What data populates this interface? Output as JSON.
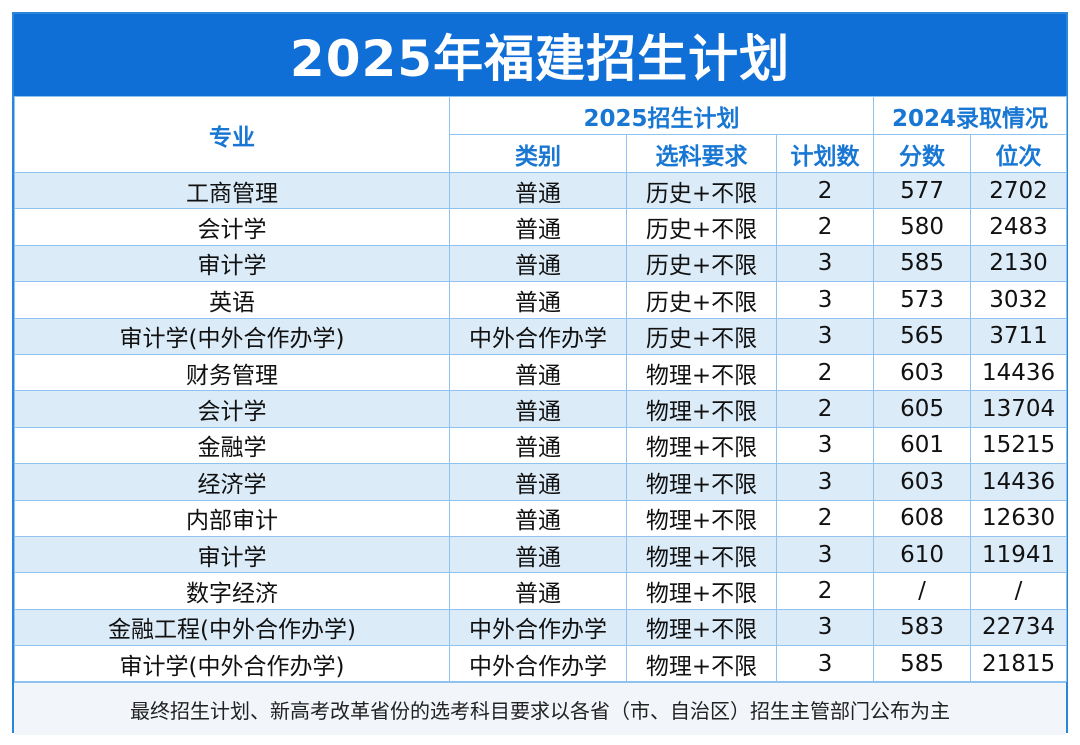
{
  "title": "2025年福建招生计划",
  "header": {
    "major": "专业",
    "plan_group": "2025招生计划",
    "admit_group": "2024录取情况",
    "type": "类别",
    "subjects": "选科要求",
    "plan_count": "计划数",
    "score": "分数",
    "rank": "位次"
  },
  "rows": [
    {
      "major": "工商管理",
      "type": "普通",
      "subjects": "历史+不限",
      "count": "2",
      "score": "577",
      "rank": "2702"
    },
    {
      "major": "会计学",
      "type": "普通",
      "subjects": "历史+不限",
      "count": "2",
      "score": "580",
      "rank": "2483"
    },
    {
      "major": "审计学",
      "type": "普通",
      "subjects": "历史+不限",
      "count": "3",
      "score": "585",
      "rank": "2130"
    },
    {
      "major": "英语",
      "type": "普通",
      "subjects": "历史+不限",
      "count": "3",
      "score": "573",
      "rank": "3032"
    },
    {
      "major": "审计学(中外合作办学)",
      "type": "中外合作办学",
      "subjects": "历史+不限",
      "count": "3",
      "score": "565",
      "rank": "3711"
    },
    {
      "major": "财务管理",
      "type": "普通",
      "subjects": "物理+不限",
      "count": "2",
      "score": "603",
      "rank": "14436"
    },
    {
      "major": "会计学",
      "type": "普通",
      "subjects": "物理+不限",
      "count": "2",
      "score": "605",
      "rank": "13704"
    },
    {
      "major": "金融学",
      "type": "普通",
      "subjects": "物理+不限",
      "count": "3",
      "score": "601",
      "rank": "15215"
    },
    {
      "major": "经济学",
      "type": "普通",
      "subjects": "物理+不限",
      "count": "3",
      "score": "603",
      "rank": "14436"
    },
    {
      "major": "内部审计",
      "type": "普通",
      "subjects": "物理+不限",
      "count": "2",
      "score": "608",
      "rank": "12630"
    },
    {
      "major": "审计学",
      "type": "普通",
      "subjects": "物理+不限",
      "count": "3",
      "score": "610",
      "rank": "11941"
    },
    {
      "major": "数字经济",
      "type": "普通",
      "subjects": "物理+不限",
      "count": "2",
      "score": "/",
      "rank": "/"
    },
    {
      "major": "金融工程(中外合作办学)",
      "type": "中外合作办学",
      "subjects": "物理+不限",
      "count": "3",
      "score": "583",
      "rank": "22734"
    },
    {
      "major": "审计学(中外合作办学)",
      "type": "中外合作办学",
      "subjects": "物理+不限",
      "count": "3",
      "score": "585",
      "rank": "21815"
    }
  ],
  "footnote": "最终招生计划、新高考改革省份的选考科目要求以各省（市、自治区）招生主管部门公布为主"
}
